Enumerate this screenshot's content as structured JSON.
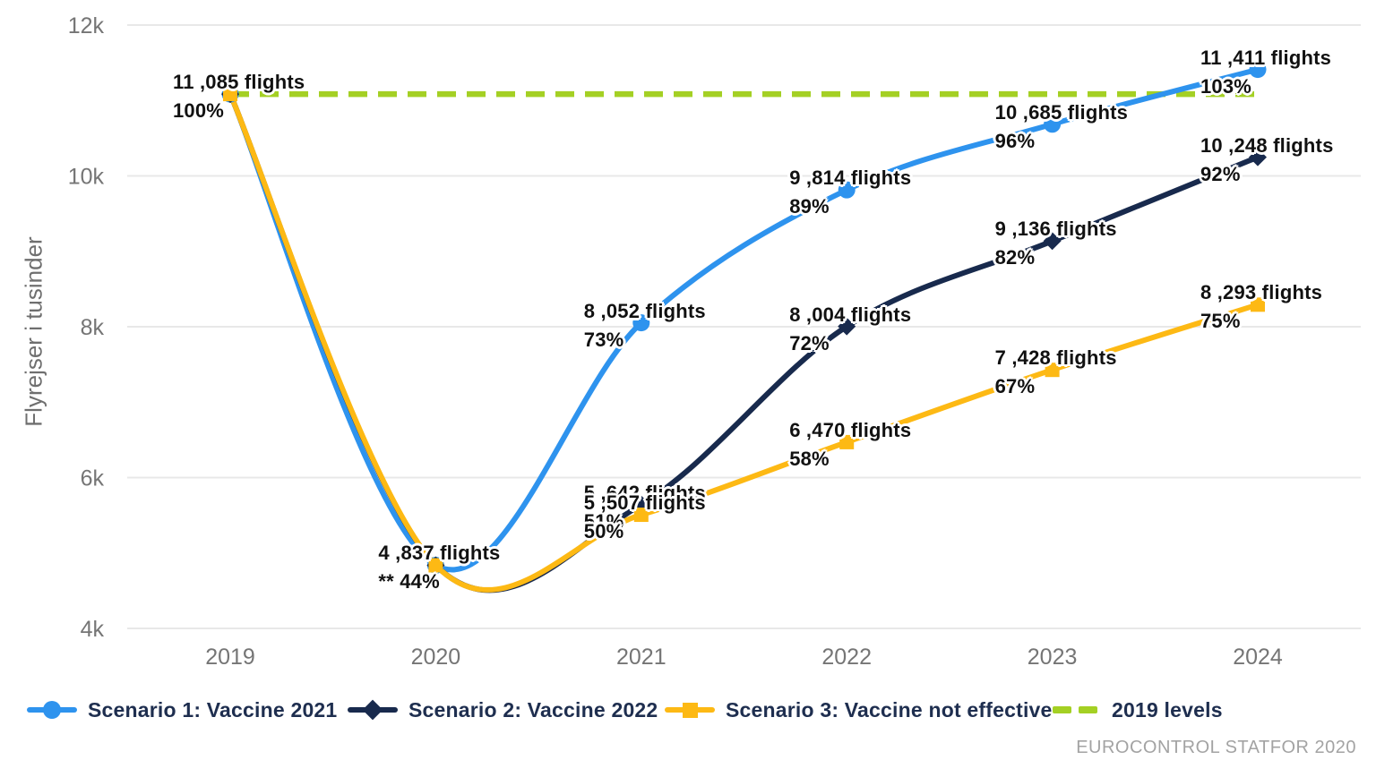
{
  "chart_data": {
    "type": "line",
    "title": "",
    "ylabel": "Flyrejser i tusinder",
    "source": "EUROCONTROL STATFOR 2020",
    "x_categories": [
      "2019",
      "2020",
      "2021",
      "2022",
      "2023",
      "2024"
    ],
    "ylim": [
      4000,
      12000
    ],
    "yticks": [
      {
        "value": 4000,
        "label": "4k"
      },
      {
        "value": 6000,
        "label": "6k"
      },
      {
        "value": 8000,
        "label": "8k"
      },
      {
        "value": 10000,
        "label": "10k"
      },
      {
        "value": 12000,
        "label": "12k"
      }
    ],
    "grid": "horizontal",
    "legend_position": "bottom",
    "series": [
      {
        "name": "Scenario 1: Vaccine 2021",
        "color": "#2e93ee",
        "marker": "circle",
        "values": [
          11085,
          4837,
          8052,
          9814,
          10685,
          11411
        ],
        "percent_of_2019": [
          "100%",
          "44%",
          "73%",
          "89%",
          "96%",
          "103%"
        ]
      },
      {
        "name": "Scenario 2: Vaccine 2022",
        "color": "#182a4d",
        "marker": "diamond",
        "values": [
          11085,
          4837,
          5642,
          8004,
          9136,
          10248
        ],
        "percent_of_2019": [
          "100%",
          "44%",
          "51%",
          "72%",
          "82%",
          "92%"
        ]
      },
      {
        "name": "Scenario 3: Vaccine not effective",
        "color": "#fdb914",
        "marker": "square",
        "values": [
          11085,
          4837,
          5507,
          6470,
          7428,
          8293
        ],
        "percent_of_2019": [
          "100%",
          "44%",
          "50%",
          "58%",
          "67%",
          "75%"
        ]
      }
    ],
    "reference_line": {
      "name": "2019 levels",
      "value": 11085,
      "color": "#a4d024",
      "style": "dashed"
    },
    "point_labels": [
      {
        "series": 0,
        "x_index": 0,
        "line1": "11 ,085 flights",
        "line2": "100%"
      },
      {
        "series": 2,
        "x_index": 1,
        "line1": "4 ,837 flights",
        "line2": "** 44%"
      },
      {
        "series": 0,
        "x_index": 2,
        "line1": "8 ,052 flights",
        "line2": "73%"
      },
      {
        "series": 0,
        "x_index": 3,
        "line1": "9 ,814 flights",
        "line2": "89%"
      },
      {
        "series": 0,
        "x_index": 4,
        "line1": "10 ,685 flights",
        "line2": "96%"
      },
      {
        "series": 0,
        "x_index": 5,
        "line1": "11 ,411 flights",
        "line2": "103%"
      },
      {
        "series": 1,
        "x_index": 2,
        "line1": "5 ,642 flights",
        "line2": "51%"
      },
      {
        "series": 1,
        "x_index": 3,
        "line1": "8 ,004 flights",
        "line2": "72%"
      },
      {
        "series": 1,
        "x_index": 4,
        "line1": "9 ,136 flights",
        "line2": "82%"
      },
      {
        "series": 1,
        "x_index": 5,
        "line1": "10 ,248 flights",
        "line2": "92%"
      },
      {
        "series": 2,
        "x_index": 2,
        "line1": "5 ,507 flights",
        "line2": "50%"
      },
      {
        "series": 2,
        "x_index": 3,
        "line1": "6 ,470 flights",
        "line2": "58%"
      },
      {
        "series": 2,
        "x_index": 4,
        "line1": "7 ,428 flights",
        "line2": "67%"
      },
      {
        "series": 2,
        "x_index": 5,
        "line1": "8 ,293 flights",
        "line2": "75%"
      }
    ]
  }
}
